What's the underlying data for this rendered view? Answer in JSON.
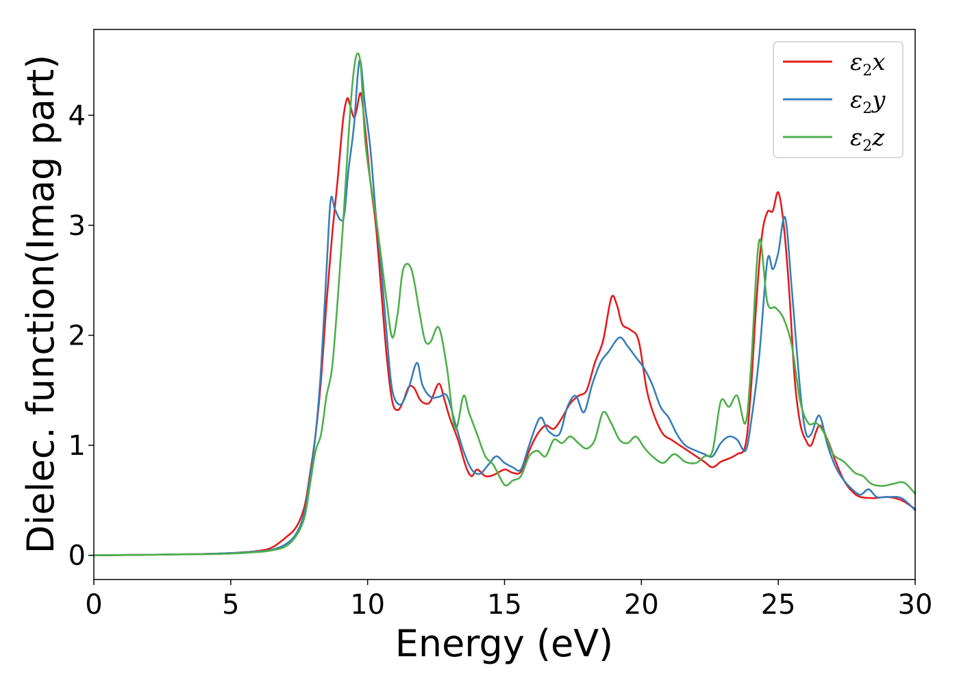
{
  "chart_data": {
    "type": "line",
    "xlabel": "Energy (eV)",
    "ylabel": "Dielec. function(Imag part)",
    "xlim": [
      0,
      30
    ],
    "ylim": [
      -0.22,
      4.78
    ],
    "xticks": [
      0,
      5,
      10,
      15,
      20,
      25,
      30
    ],
    "yticks": [
      0,
      1,
      2,
      3,
      4
    ],
    "grid": false,
    "legend_position": "top-right",
    "series": [
      {
        "name": "ε2x",
        "legend": {
          "base": "ε",
          "sub": "2",
          "tail": "x"
        },
        "color": "#e41a1c",
        "points": [
          [
            0,
            0
          ],
          [
            2,
            0.005
          ],
          [
            4,
            0.012
          ],
          [
            5,
            0.02
          ],
          [
            6,
            0.04
          ],
          [
            6.5,
            0.07
          ],
          [
            7,
            0.16
          ],
          [
            7.4,
            0.26
          ],
          [
            7.7,
            0.45
          ],
          [
            7.9,
            0.75
          ],
          [
            8.1,
            1.1
          ],
          [
            8.3,
            1.6
          ],
          [
            8.5,
            2.3
          ],
          [
            8.7,
            2.9
          ],
          [
            8.9,
            3.4
          ],
          [
            9.1,
            3.95
          ],
          [
            9.25,
            4.15
          ],
          [
            9.35,
            4.1
          ],
          [
            9.5,
            3.98
          ],
          [
            9.6,
            4.05
          ],
          [
            9.75,
            4.2
          ],
          [
            9.9,
            3.9
          ],
          [
            10.1,
            3.4
          ],
          [
            10.3,
            3.0
          ],
          [
            10.5,
            2.4
          ],
          [
            10.7,
            1.8
          ],
          [
            10.9,
            1.4
          ],
          [
            11.1,
            1.32
          ],
          [
            11.3,
            1.4
          ],
          [
            11.5,
            1.53
          ],
          [
            11.7,
            1.52
          ],
          [
            11.9,
            1.42
          ],
          [
            12.1,
            1.38
          ],
          [
            12.3,
            1.4
          ],
          [
            12.6,
            1.56
          ],
          [
            12.8,
            1.42
          ],
          [
            13,
            1.25
          ],
          [
            13.3,
            1.05
          ],
          [
            13.6,
            0.8
          ],
          [
            13.8,
            0.72
          ],
          [
            14.0,
            0.78
          ],
          [
            14.3,
            0.72
          ],
          [
            14.6,
            0.73
          ],
          [
            15.0,
            0.78
          ],
          [
            15.3,
            0.75
          ],
          [
            15.6,
            0.76
          ],
          [
            15.9,
            0.95
          ],
          [
            16.2,
            1.1
          ],
          [
            16.5,
            1.18
          ],
          [
            16.8,
            1.15
          ],
          [
            17.1,
            1.25
          ],
          [
            17.4,
            1.38
          ],
          [
            17.7,
            1.45
          ],
          [
            18.0,
            1.5
          ],
          [
            18.3,
            1.75
          ],
          [
            18.6,
            1.95
          ],
          [
            18.9,
            2.34
          ],
          [
            19.1,
            2.28
          ],
          [
            19.3,
            2.1
          ],
          [
            19.6,
            2.05
          ],
          [
            19.9,
            1.95
          ],
          [
            20.2,
            1.5
          ],
          [
            20.5,
            1.25
          ],
          [
            20.8,
            1.1
          ],
          [
            21.1,
            1.05
          ],
          [
            21.4,
            1.0
          ],
          [
            21.7,
            0.95
          ],
          [
            22.0,
            0.9
          ],
          [
            22.3,
            0.85
          ],
          [
            22.6,
            0.8
          ],
          [
            22.9,
            0.85
          ],
          [
            23.2,
            0.88
          ],
          [
            23.5,
            0.92
          ],
          [
            23.8,
            1.0
          ],
          [
            24.0,
            1.5
          ],
          [
            24.2,
            2.3
          ],
          [
            24.4,
            2.9
          ],
          [
            24.6,
            3.12
          ],
          [
            24.8,
            3.13
          ],
          [
            25.0,
            3.3
          ],
          [
            25.2,
            3.0
          ],
          [
            25.4,
            2.4
          ],
          [
            25.6,
            1.6
          ],
          [
            25.8,
            1.2
          ],
          [
            26.0,
            1.05
          ],
          [
            26.2,
            1.0
          ],
          [
            26.5,
            1.18
          ],
          [
            26.8,
            1.05
          ],
          [
            27.1,
            0.85
          ],
          [
            27.4,
            0.68
          ],
          [
            27.7,
            0.58
          ],
          [
            28.0,
            0.53
          ],
          [
            28.5,
            0.52
          ],
          [
            29.0,
            0.53
          ],
          [
            29.5,
            0.5
          ],
          [
            30,
            0.42
          ]
        ]
      },
      {
        "name": "ε2y",
        "legend": {
          "base": "ε",
          "sub": "2",
          "tail": "y"
        },
        "color": "#377eb8",
        "points": [
          [
            0,
            0
          ],
          [
            2,
            0.005
          ],
          [
            4,
            0.012
          ],
          [
            5,
            0.02
          ],
          [
            6,
            0.035
          ],
          [
            6.5,
            0.05
          ],
          [
            7,
            0.1
          ],
          [
            7.4,
            0.2
          ],
          [
            7.7,
            0.4
          ],
          [
            7.9,
            0.72
          ],
          [
            8.1,
            1.1
          ],
          [
            8.3,
            1.7
          ],
          [
            8.5,
            2.6
          ],
          [
            8.65,
            3.23
          ],
          [
            8.8,
            3.15
          ],
          [
            9.0,
            3.05
          ],
          [
            9.15,
            3.1
          ],
          [
            9.3,
            3.5
          ],
          [
            9.5,
            3.9
          ],
          [
            9.65,
            4.4
          ],
          [
            9.75,
            4.48
          ],
          [
            9.9,
            4.1
          ],
          [
            10.1,
            3.7
          ],
          [
            10.3,
            3.1
          ],
          [
            10.5,
            2.6
          ],
          [
            10.7,
            2.0
          ],
          [
            10.9,
            1.5
          ],
          [
            11.2,
            1.37
          ],
          [
            11.5,
            1.52
          ],
          [
            11.8,
            1.75
          ],
          [
            12.0,
            1.55
          ],
          [
            12.3,
            1.44
          ],
          [
            12.6,
            1.44
          ],
          [
            12.9,
            1.45
          ],
          [
            13.2,
            1.2
          ],
          [
            13.5,
            0.95
          ],
          [
            13.8,
            0.78
          ],
          [
            14.1,
            0.74
          ],
          [
            14.4,
            0.82
          ],
          [
            14.7,
            0.9
          ],
          [
            15.0,
            0.84
          ],
          [
            15.3,
            0.8
          ],
          [
            15.6,
            0.78
          ],
          [
            15.9,
            1.0
          ],
          [
            16.3,
            1.25
          ],
          [
            16.6,
            1.13
          ],
          [
            17.0,
            1.1
          ],
          [
            17.3,
            1.35
          ],
          [
            17.6,
            1.45
          ],
          [
            17.9,
            1.3
          ],
          [
            18.2,
            1.55
          ],
          [
            18.5,
            1.75
          ],
          [
            18.8,
            1.85
          ],
          [
            19.2,
            1.98
          ],
          [
            19.5,
            1.9
          ],
          [
            19.8,
            1.8
          ],
          [
            20.1,
            1.7
          ],
          [
            20.4,
            1.55
          ],
          [
            20.7,
            1.35
          ],
          [
            21.0,
            1.25
          ],
          [
            21.3,
            1.1
          ],
          [
            21.6,
            1.0
          ],
          [
            22.0,
            0.95
          ],
          [
            22.3,
            0.92
          ],
          [
            22.6,
            0.9
          ],
          [
            22.9,
            1.02
          ],
          [
            23.2,
            1.08
          ],
          [
            23.5,
            1.05
          ],
          [
            23.8,
            0.95
          ],
          [
            24.0,
            1.2
          ],
          [
            24.3,
            1.8
          ],
          [
            24.6,
            2.68
          ],
          [
            24.8,
            2.6
          ],
          [
            25.0,
            2.75
          ],
          [
            25.25,
            3.07
          ],
          [
            25.5,
            2.4
          ],
          [
            25.8,
            1.5
          ],
          [
            26.0,
            1.12
          ],
          [
            26.2,
            1.1
          ],
          [
            26.5,
            1.27
          ],
          [
            26.8,
            1.0
          ],
          [
            27.1,
            0.8
          ],
          [
            27.4,
            0.68
          ],
          [
            27.7,
            0.6
          ],
          [
            28.0,
            0.55
          ],
          [
            28.3,
            0.6
          ],
          [
            28.6,
            0.53
          ],
          [
            29.0,
            0.53
          ],
          [
            29.5,
            0.52
          ],
          [
            30,
            0.41
          ]
        ]
      },
      {
        "name": "ε2z",
        "legend": {
          "base": "ε",
          "sub": "2",
          "tail": "z"
        },
        "color": "#4daf4a",
        "points": [
          [
            0,
            0
          ],
          [
            2,
            0.005
          ],
          [
            4,
            0.01
          ],
          [
            5,
            0.015
          ],
          [
            6,
            0.03
          ],
          [
            6.5,
            0.045
          ],
          [
            7,
            0.08
          ],
          [
            7.4,
            0.18
          ],
          [
            7.7,
            0.35
          ],
          [
            7.9,
            0.65
          ],
          [
            8.1,
            0.95
          ],
          [
            8.3,
            1.1
          ],
          [
            8.5,
            1.45
          ],
          [
            8.7,
            1.7
          ],
          [
            8.9,
            2.3
          ],
          [
            9.1,
            3.0
          ],
          [
            9.3,
            3.8
          ],
          [
            9.45,
            4.3
          ],
          [
            9.6,
            4.55
          ],
          [
            9.75,
            4.45
          ],
          [
            9.9,
            3.8
          ],
          [
            10.1,
            3.4
          ],
          [
            10.3,
            3.08
          ],
          [
            10.5,
            2.7
          ],
          [
            10.7,
            2.3
          ],
          [
            10.9,
            1.98
          ],
          [
            11.1,
            2.2
          ],
          [
            11.3,
            2.6
          ],
          [
            11.6,
            2.6
          ],
          [
            11.9,
            2.2
          ],
          [
            12.1,
            1.95
          ],
          [
            12.3,
            1.94
          ],
          [
            12.6,
            2.07
          ],
          [
            12.9,
            1.7
          ],
          [
            13.2,
            1.15
          ],
          [
            13.5,
            1.45
          ],
          [
            13.7,
            1.3
          ],
          [
            14.0,
            1.1
          ],
          [
            14.3,
            0.9
          ],
          [
            14.6,
            0.82
          ],
          [
            15.0,
            0.64
          ],
          [
            15.3,
            0.68
          ],
          [
            15.6,
            0.72
          ],
          [
            15.9,
            0.9
          ],
          [
            16.2,
            0.95
          ],
          [
            16.5,
            0.9
          ],
          [
            16.8,
            1.05
          ],
          [
            17.1,
            1.02
          ],
          [
            17.4,
            1.08
          ],
          [
            17.7,
            1.02
          ],
          [
            18.0,
            0.97
          ],
          [
            18.3,
            1.05
          ],
          [
            18.6,
            1.3
          ],
          [
            18.9,
            1.2
          ],
          [
            19.2,
            1.05
          ],
          [
            19.5,
            1.02
          ],
          [
            19.8,
            1.08
          ],
          [
            20.1,
            0.98
          ],
          [
            20.4,
            0.9
          ],
          [
            20.8,
            0.84
          ],
          [
            21.2,
            0.92
          ],
          [
            21.6,
            0.85
          ],
          [
            22.0,
            0.84
          ],
          [
            22.3,
            0.9
          ],
          [
            22.6,
            0.95
          ],
          [
            22.9,
            1.4
          ],
          [
            23.2,
            1.35
          ],
          [
            23.5,
            1.45
          ],
          [
            23.8,
            1.2
          ],
          [
            24.0,
            1.7
          ],
          [
            24.3,
            2.86
          ],
          [
            24.6,
            2.3
          ],
          [
            24.9,
            2.25
          ],
          [
            25.2,
            2.15
          ],
          [
            25.5,
            1.9
          ],
          [
            25.8,
            1.4
          ],
          [
            26.1,
            1.2
          ],
          [
            26.4,
            1.2
          ],
          [
            26.7,
            1.1
          ],
          [
            27.0,
            0.92
          ],
          [
            27.4,
            0.85
          ],
          [
            27.8,
            0.75
          ],
          [
            28.1,
            0.72
          ],
          [
            28.4,
            0.65
          ],
          [
            28.8,
            0.63
          ],
          [
            29.2,
            0.65
          ],
          [
            29.6,
            0.66
          ],
          [
            30,
            0.56
          ]
        ]
      }
    ]
  }
}
